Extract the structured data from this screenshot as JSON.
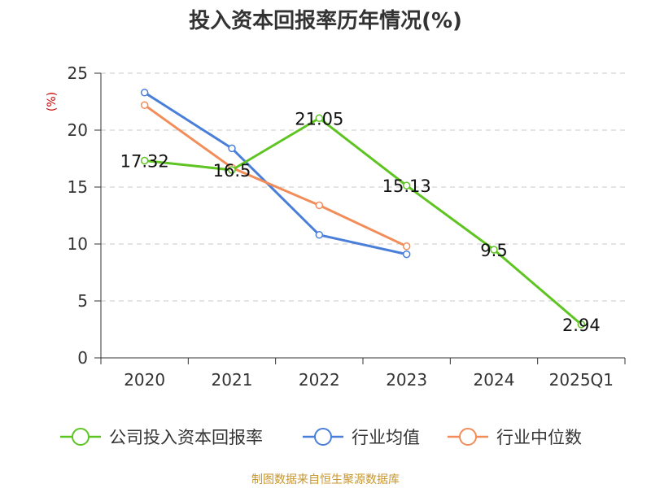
{
  "chart_data": {
    "type": "line",
    "title": "投入资本回报率历年情况(%)",
    "ylabel": "(%)",
    "xlabel": "",
    "categories": [
      "2020",
      "2021",
      "2022",
      "2023",
      "2024",
      "2025Q1"
    ],
    "ylim": [
      0,
      25
    ],
    "yticks": [
      0,
      5,
      10,
      15,
      20,
      25
    ],
    "grid": true,
    "legend_position": "bottom",
    "series": [
      {
        "name": "公司投入资本回报率",
        "color": "#5ec422",
        "values": [
          17.32,
          16.5,
          21.05,
          15.13,
          9.5,
          2.94
        ],
        "labels": [
          "17.32",
          "16.5",
          "21.05",
          "15.13",
          "9.5",
          "2.94"
        ],
        "show_labels": true
      },
      {
        "name": "行业均值",
        "color": "#4a7fd9",
        "values": [
          23.3,
          18.4,
          10.8,
          9.1,
          null,
          null
        ],
        "show_labels": false
      },
      {
        "name": "行业中位数",
        "color": "#f28d5a",
        "values": [
          22.2,
          16.7,
          13.4,
          9.8,
          null,
          null
        ],
        "show_labels": false
      }
    ],
    "source": "制图数据来自恒生聚源数据库",
    "source_color": "#c8962e",
    "unit_color": "#cc0000"
  }
}
